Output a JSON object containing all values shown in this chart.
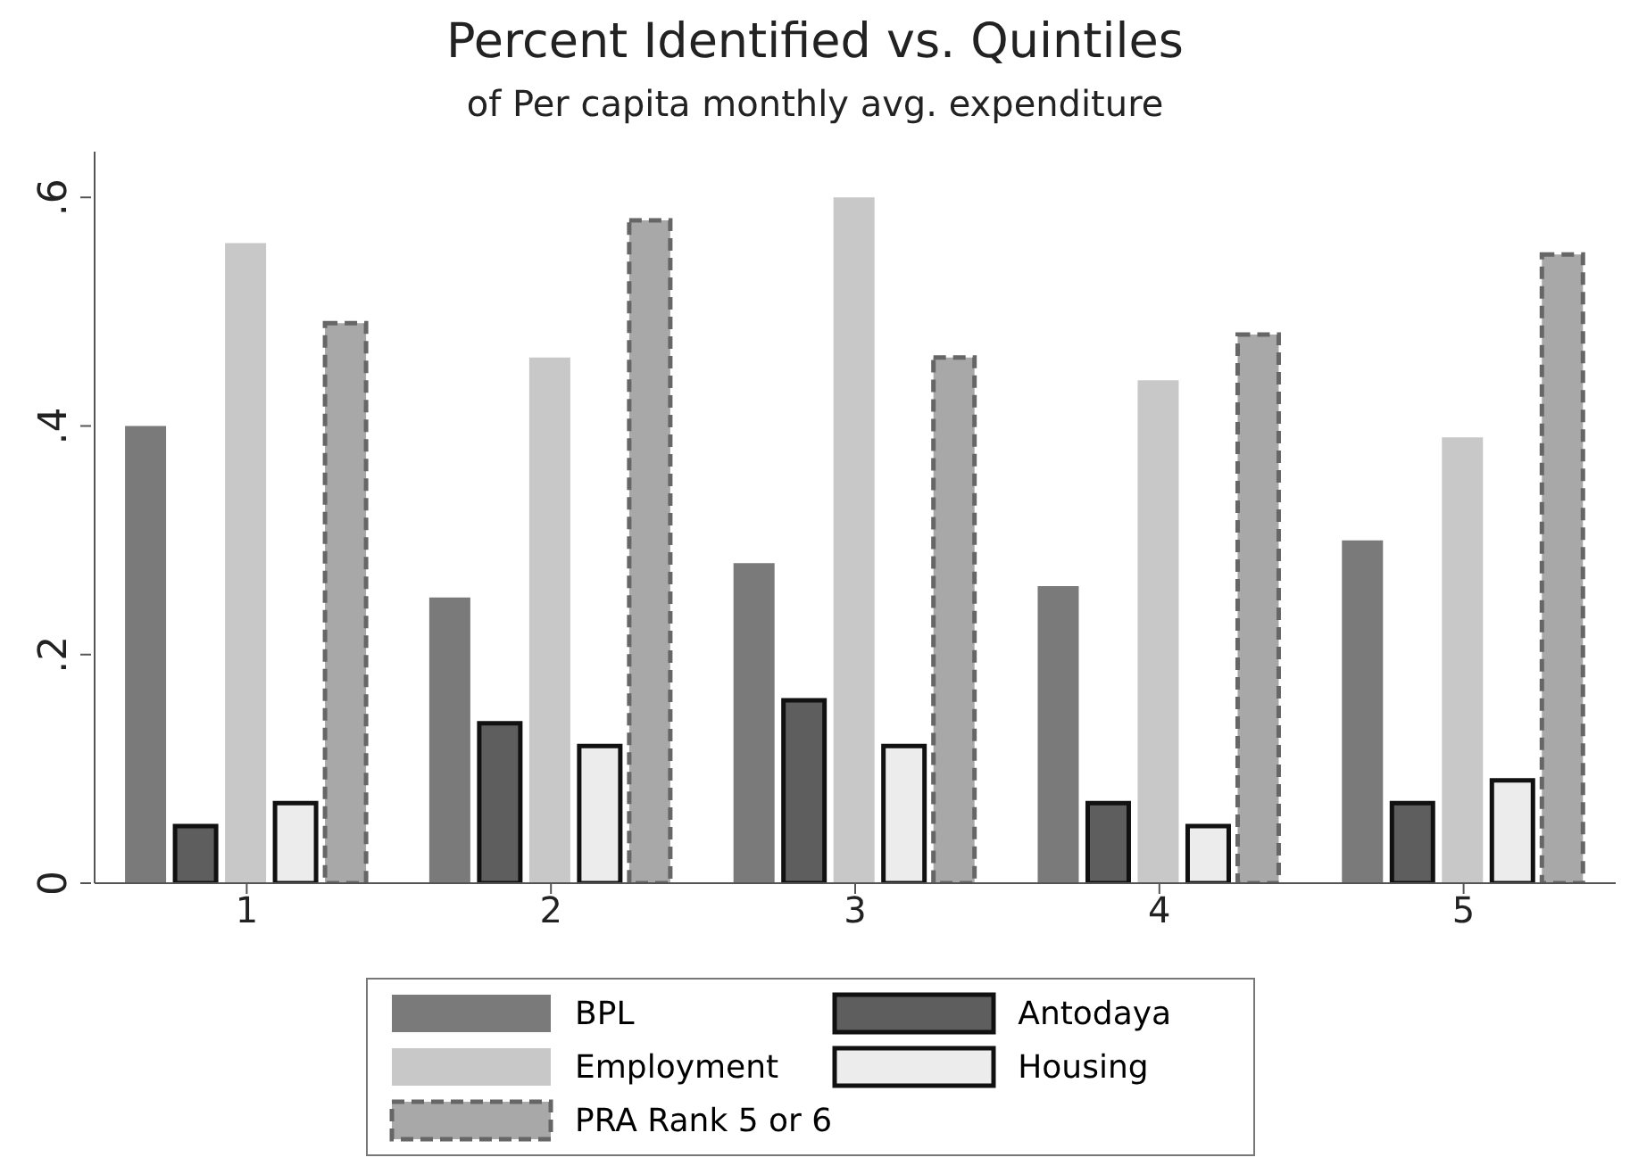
{
  "chart_data": {
    "type": "bar",
    "title": "Percent Identified vs. Quintiles",
    "subtitle": "of Per capita monthly avg. expenditure",
    "categories": [
      "1",
      "2",
      "3",
      "4",
      "5"
    ],
    "series": [
      {
        "name": "BPL",
        "color": "#7a7a7a",
        "values": [
          0.4,
          0.25,
          0.28,
          0.26,
          0.3
        ]
      },
      {
        "name": "Antodaya",
        "color": "#5e5e5e",
        "line_style": "solid",
        "values": [
          0.05,
          0.14,
          0.16,
          0.07,
          0.07
        ]
      },
      {
        "name": "Employment",
        "color": "#c8c8c8",
        "values": [
          0.56,
          0.46,
          0.6,
          0.44,
          0.39
        ]
      },
      {
        "name": "Housing",
        "color": "#ececec",
        "line_style": "solid",
        "values": [
          0.07,
          0.12,
          0.12,
          0.05,
          0.09
        ]
      },
      {
        "name": "PRA Rank 5 or 6",
        "color": "#a8a8a8",
        "line_style": "dashed",
        "values": [
          0.49,
          0.58,
          0.46,
          0.48,
          0.55
        ]
      }
    ],
    "ylim": [
      0,
      0.64
    ],
    "yticks": [
      {
        "value": 0,
        "label": "0"
      },
      {
        "value": 0.2,
        "label": ".2"
      },
      {
        "value": 0.4,
        "label": ".4"
      },
      {
        "value": 0.6,
        "label": ".6"
      }
    ],
    "legend": "bottom"
  }
}
